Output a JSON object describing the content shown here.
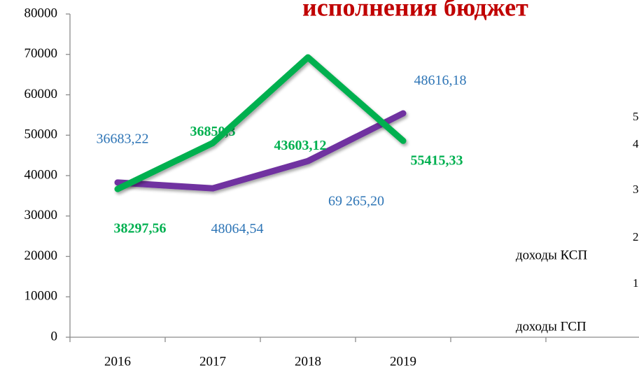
{
  "chart_data": {
    "type": "line",
    "title": "исполнения бюджет",
    "categories": [
      "2016",
      "2017",
      "2018",
      "2019",
      null,
      null
    ],
    "series": [
      {
        "name": "доходы КСП",
        "color": "#7030a0",
        "label_color": "#00b050",
        "values": [
          38297.56,
          36850.3,
          43603.12,
          55415.33,
          null,
          null
        ],
        "value_labels": [
          "38297,56",
          "36850,3",
          "43603,12",
          "55415,33",
          null,
          null
        ]
      },
      {
        "name": "доходы ГСП",
        "color": "#00b050",
        "label_color": "#2e75b6",
        "values": [
          36683.22,
          48064.54,
          69265.2,
          48616.18,
          null,
          null
        ],
        "value_labels": [
          "36683,22",
          "48064,54",
          "69 265,20",
          "48616,18",
          null,
          null
        ]
      }
    ],
    "ylim": [
      0,
      80000
    ],
    "yticks": [
      0,
      10000,
      20000,
      30000,
      40000,
      50000,
      60000,
      70000,
      80000
    ],
    "grid": false,
    "legend": "right",
    "clipped_labels": [
      "5",
      "4",
      "3",
      "2",
      "1"
    ]
  }
}
